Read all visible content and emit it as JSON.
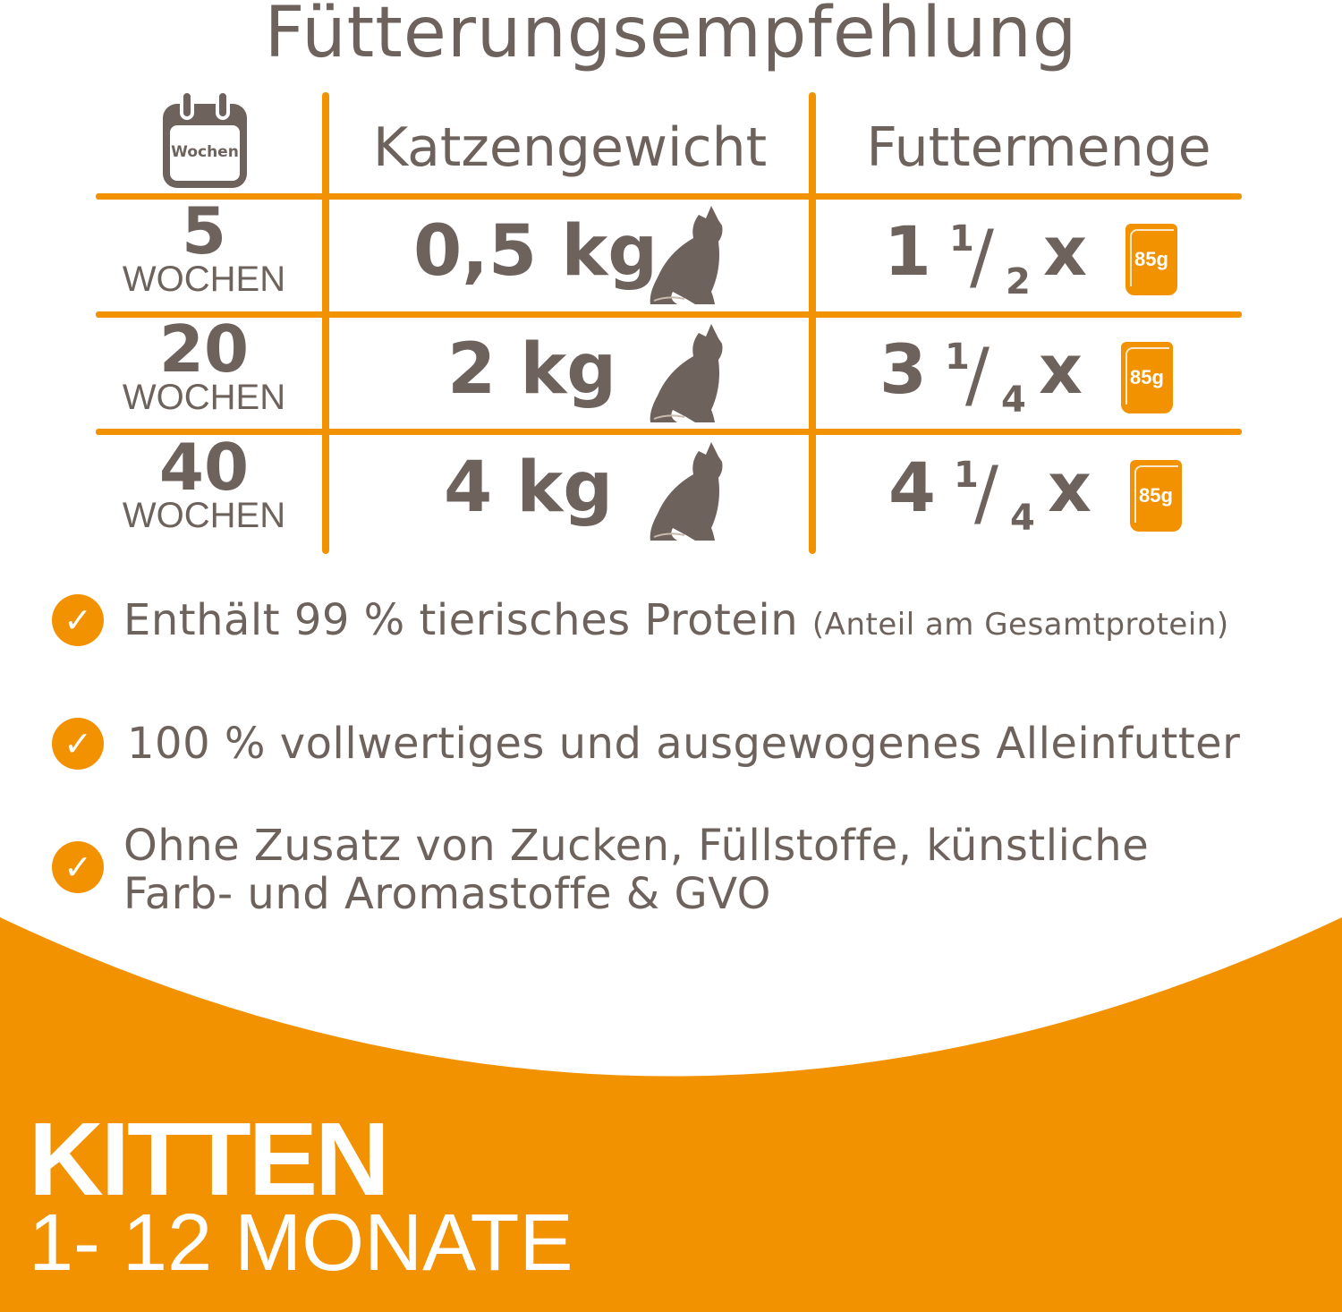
{
  "colors": {
    "accent": "#f39200",
    "text": "#6e625d"
  },
  "title": "Fütterungsempfehlung",
  "table": {
    "calendar_icon_label": "Wochen",
    "headers": {
      "weight": "Katzengewicht",
      "amount": "Futtermenge"
    },
    "rows": [
      {
        "weeks": "5",
        "weeks_label": "WOCHEN",
        "weight": "0,5 kg",
        "whole": "1",
        "num": "1",
        "den": "2",
        "times": "x",
        "pouch": "85g"
      },
      {
        "weeks": "20",
        "weeks_label": "WOCHEN",
        "weight": "2 kg",
        "whole": "3",
        "num": "1",
        "den": "4",
        "times": "x",
        "pouch": "85g"
      },
      {
        "weeks": "40",
        "weeks_label": "WOCHEN",
        "weight": "4 kg",
        "whole": "4",
        "num": "1",
        "den": "4",
        "times": "x",
        "pouch": "85g"
      }
    ]
  },
  "bullets": [
    {
      "text": "Enthält 99 % tierisches Protein",
      "note": "(Anteil am Gesamtprotein)"
    },
    {
      "text": "100 % vollwertiges und ausgewogenes Alleinfutter"
    },
    {
      "line1": "Ohne Zusatz von Zucken, Füllstoffe, künstliche",
      "line2": "Farb- und Aromastoffe & GVO"
    }
  ],
  "check_glyph": "✓",
  "banner": {
    "title": "KITTEN",
    "subtitle": "1- 12 MONATE"
  }
}
